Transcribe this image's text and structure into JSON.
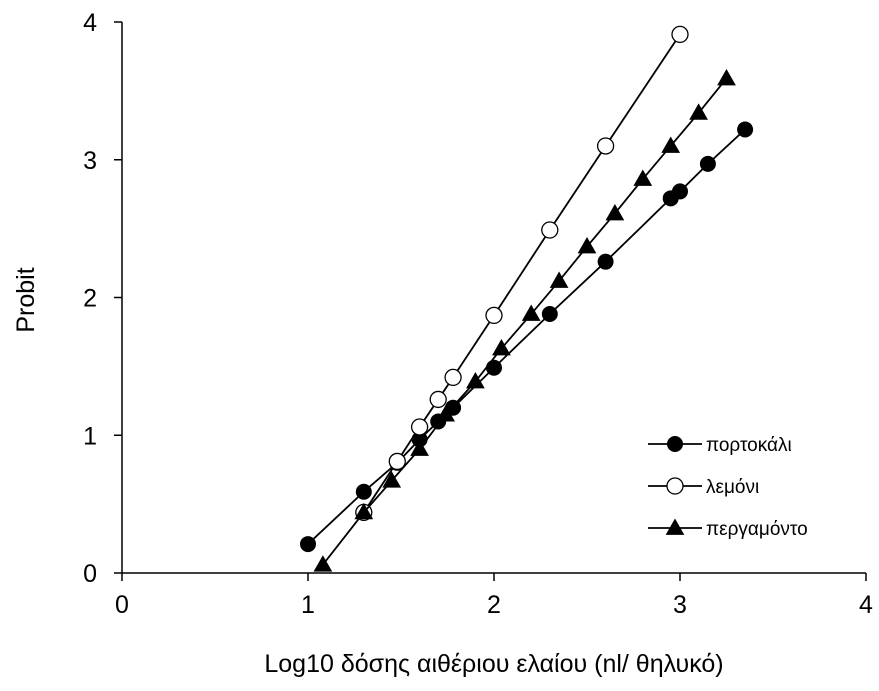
{
  "chart_data": {
    "type": "line",
    "xlabel": "Log10 δόσης αιθέριου ελαίου (nl/ θηλυκό)",
    "ylabel": "Probit",
    "xlim": [
      0,
      4
    ],
    "ylim": [
      0,
      4
    ],
    "x_ticks": [
      "0",
      "1",
      "2",
      "3",
      "4"
    ],
    "y_ticks": [
      "0",
      "1",
      "2",
      "3",
      "4"
    ],
    "grid": false,
    "legend_position": "bottom-right",
    "series": [
      {
        "name": "πορτοκάλι",
        "marker": "filled-circle",
        "x": [
          1.0,
          1.3,
          1.48,
          1.6,
          1.7,
          1.78,
          2.0,
          2.3,
          2.6,
          2.95,
          3.0,
          3.15,
          3.35
        ],
        "y": [
          0.21,
          0.59,
          0.8,
          0.97,
          1.1,
          1.2,
          1.49,
          1.88,
          2.26,
          2.72,
          2.77,
          2.97,
          3.22
        ]
      },
      {
        "name": "λεμόνι",
        "marker": "open-circle",
        "x": [
          1.3,
          1.48,
          1.6,
          1.7,
          1.78,
          2.0,
          2.3,
          2.6,
          3.0
        ],
        "y": [
          0.44,
          0.81,
          1.06,
          1.26,
          1.42,
          1.87,
          2.49,
          3.1,
          3.91
        ]
      },
      {
        "name": "περγαμόντο",
        "marker": "filled-triangle",
        "x": [
          1.08,
          1.3,
          1.45,
          1.6,
          1.74,
          1.9,
          2.04,
          2.2,
          2.35,
          2.5,
          2.65,
          2.8,
          2.95,
          3.1,
          3.25
        ],
        "y": [
          0.06,
          0.44,
          0.67,
          0.9,
          1.15,
          1.39,
          1.63,
          1.88,
          2.12,
          2.37,
          2.61,
          2.86,
          3.1,
          3.34,
          3.59
        ]
      }
    ]
  }
}
